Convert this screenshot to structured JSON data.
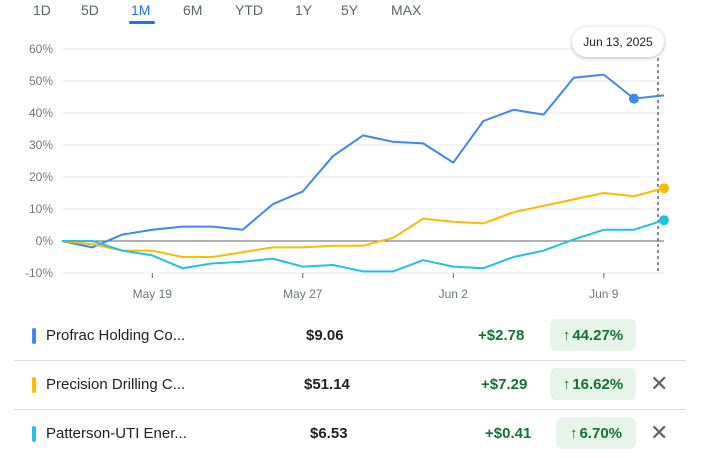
{
  "tabs": [
    "1D",
    "5D",
    "1M",
    "6M",
    "YTD",
    "1Y",
    "5Y",
    "MAX"
  ],
  "active_tab": "1M",
  "tooltip_date": "Jun 13, 2025",
  "chart_data": {
    "type": "line",
    "x_labels": [
      "May 19",
      "May 27",
      "Jun 2",
      "Jun 9"
    ],
    "x_label_index": [
      3,
      8,
      13,
      18
    ],
    "y_ticks": [
      "60%",
      "50%",
      "40%",
      "30%",
      "20%",
      "10%",
      "0%",
      "-10%"
    ],
    "ylim": [
      -10,
      60
    ],
    "grid": true,
    "series": [
      {
        "name": "Profrac Holding Co...",
        "color": "#4285f4",
        "values": [
          0,
          -2,
          2,
          3.5,
          4.5,
          4.5,
          3.5,
          11.5,
          15.5,
          26.5,
          33,
          31,
          30.5,
          24.5,
          37.5,
          41,
          39.5,
          51,
          52,
          44.5,
          45.5
        ],
        "marker_index": 19
      },
      {
        "name": "Precision Drilling C...",
        "color": "#fbbc04",
        "values": [
          0,
          -1,
          -3,
          -3,
          -5,
          -5,
          -3.5,
          -2,
          -2,
          -1.5,
          -1.5,
          1,
          7,
          6,
          5.5,
          9,
          11,
          13,
          15,
          14,
          16.5
        ],
        "marker_index": 20
      },
      {
        "name": "Patterson-UTI Ener...",
        "color": "#24c1e0",
        "values": [
          0,
          0,
          -3,
          -4.5,
          -8.5,
          -7,
          -6.5,
          -5.5,
          -8,
          -7.5,
          -9.5,
          -9.5,
          -6,
          -8,
          -8.5,
          -5,
          -3,
          0.5,
          3.5,
          3.5,
          6.5
        ],
        "marker_index": 20
      }
    ]
  },
  "rows": [
    {
      "name": "Profrac Holding Co...",
      "price": "$9.06",
      "change": "+$2.78",
      "pct": "44.27%",
      "arrow": "↑",
      "color": "#4285f4",
      "close": ""
    },
    {
      "name": "Precision Drilling C...",
      "price": "$51.14",
      "change": "+$7.29",
      "pct": "16.62%",
      "arrow": "↑",
      "color": "#fbbc04",
      "close": "✕"
    },
    {
      "name": "Patterson-UTI Ener...",
      "price": "$6.53",
      "change": "+$0.41",
      "pct": "6.70%",
      "arrow": "↑",
      "color": "#24c1e0",
      "close": "✕"
    }
  ]
}
